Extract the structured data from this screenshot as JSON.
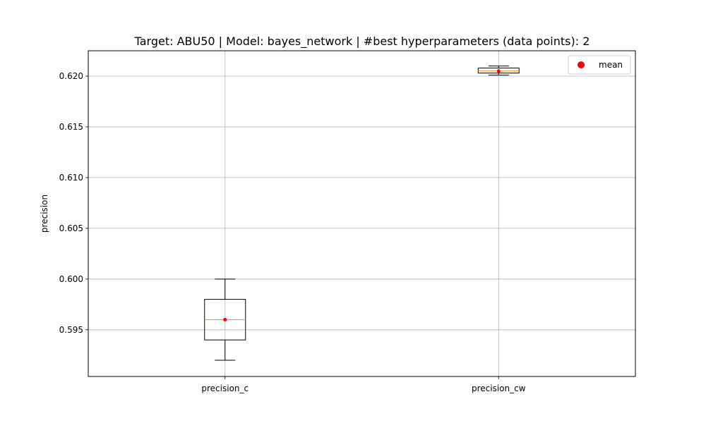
{
  "chart_data": {
    "type": "box",
    "title": "Target: ABU50 | Model: bayes_network | #best hyperparameters (data points): 2",
    "xlabel": "",
    "ylabel": "precision",
    "ylim": [
      0.5904,
      0.6225
    ],
    "yticks": [
      0.595,
      0.6,
      0.605,
      0.61,
      0.615,
      0.62
    ],
    "ytick_labels": [
      "0.595",
      "0.600",
      "0.605",
      "0.610",
      "0.615",
      "0.620"
    ],
    "grid": true,
    "legend": {
      "position": "upper-right",
      "entries": [
        {
          "label": "mean",
          "marker": "circle",
          "color": "#ff0000"
        }
      ]
    },
    "categories": [
      "precision_c",
      "precision_cw"
    ],
    "boxes": [
      {
        "category": "precision_c",
        "whisker_low": 0.592,
        "q1": 0.594,
        "median": 0.596,
        "q3": 0.598,
        "whisker_high": 0.6,
        "mean": 0.596
      },
      {
        "category": "precision_cw",
        "whisker_low": 0.6201,
        "q1": 0.6203,
        "median": 0.6205,
        "q3": 0.6208,
        "whisker_high": 0.621,
        "mean": 0.6205
      }
    ],
    "colors": {
      "box": "#000000",
      "median": "#ff7f0e",
      "mean": "#ff0000",
      "grid": "#b0b0b0"
    }
  }
}
